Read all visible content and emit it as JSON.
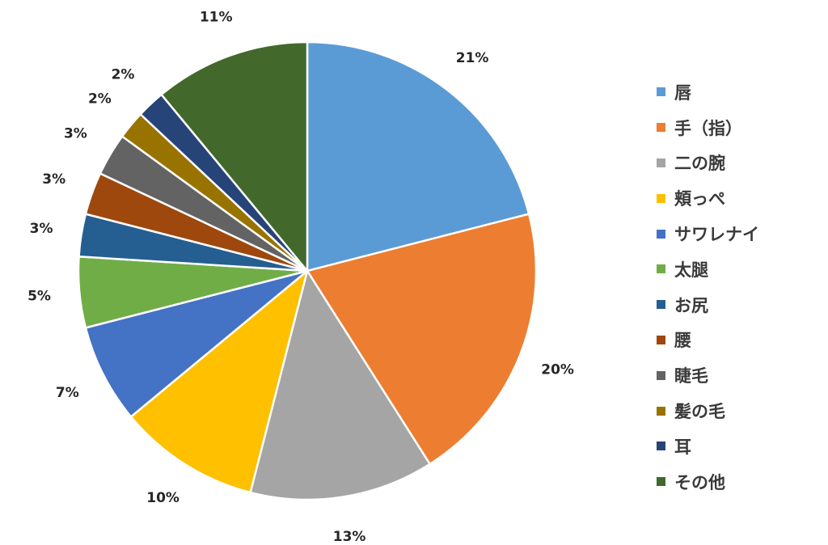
{
  "chart_data": {
    "type": "pie",
    "start_angle_deg": 0,
    "direction": "clockwise",
    "legend_position": "right",
    "slices": [
      {
        "label": "唇",
        "value": 21,
        "value_label": "21%",
        "color": "#5B9BD5"
      },
      {
        "label": "手（指）",
        "value": 20,
        "value_label": "20%",
        "color": "#ED7D31"
      },
      {
        "label": "二の腕",
        "value": 13,
        "value_label": "13%",
        "color": "#A5A5A5"
      },
      {
        "label": "頬っぺ",
        "value": 10,
        "value_label": "10%",
        "color": "#FFC000"
      },
      {
        "label": "サワレナイ",
        "value": 7,
        "value_label": "7%",
        "color": "#4472C4"
      },
      {
        "label": "太腿",
        "value": 5,
        "value_label": "5%",
        "color": "#70AD47"
      },
      {
        "label": "お尻",
        "value": 3,
        "value_label": "3%",
        "color": "#255E91"
      },
      {
        "label": "腰",
        "value": 3,
        "value_label": "3%",
        "color": "#9E480E"
      },
      {
        "label": "睫毛",
        "value": 3,
        "value_label": "3%",
        "color": "#636363"
      },
      {
        "label": "髪の毛",
        "value": 2,
        "value_label": "2%",
        "color": "#997300"
      },
      {
        "label": "耳",
        "value": 2,
        "value_label": "2%",
        "color": "#264478"
      },
      {
        "label": "その他",
        "value": 11,
        "value_label": "11%",
        "color": "#43682B"
      }
    ]
  }
}
